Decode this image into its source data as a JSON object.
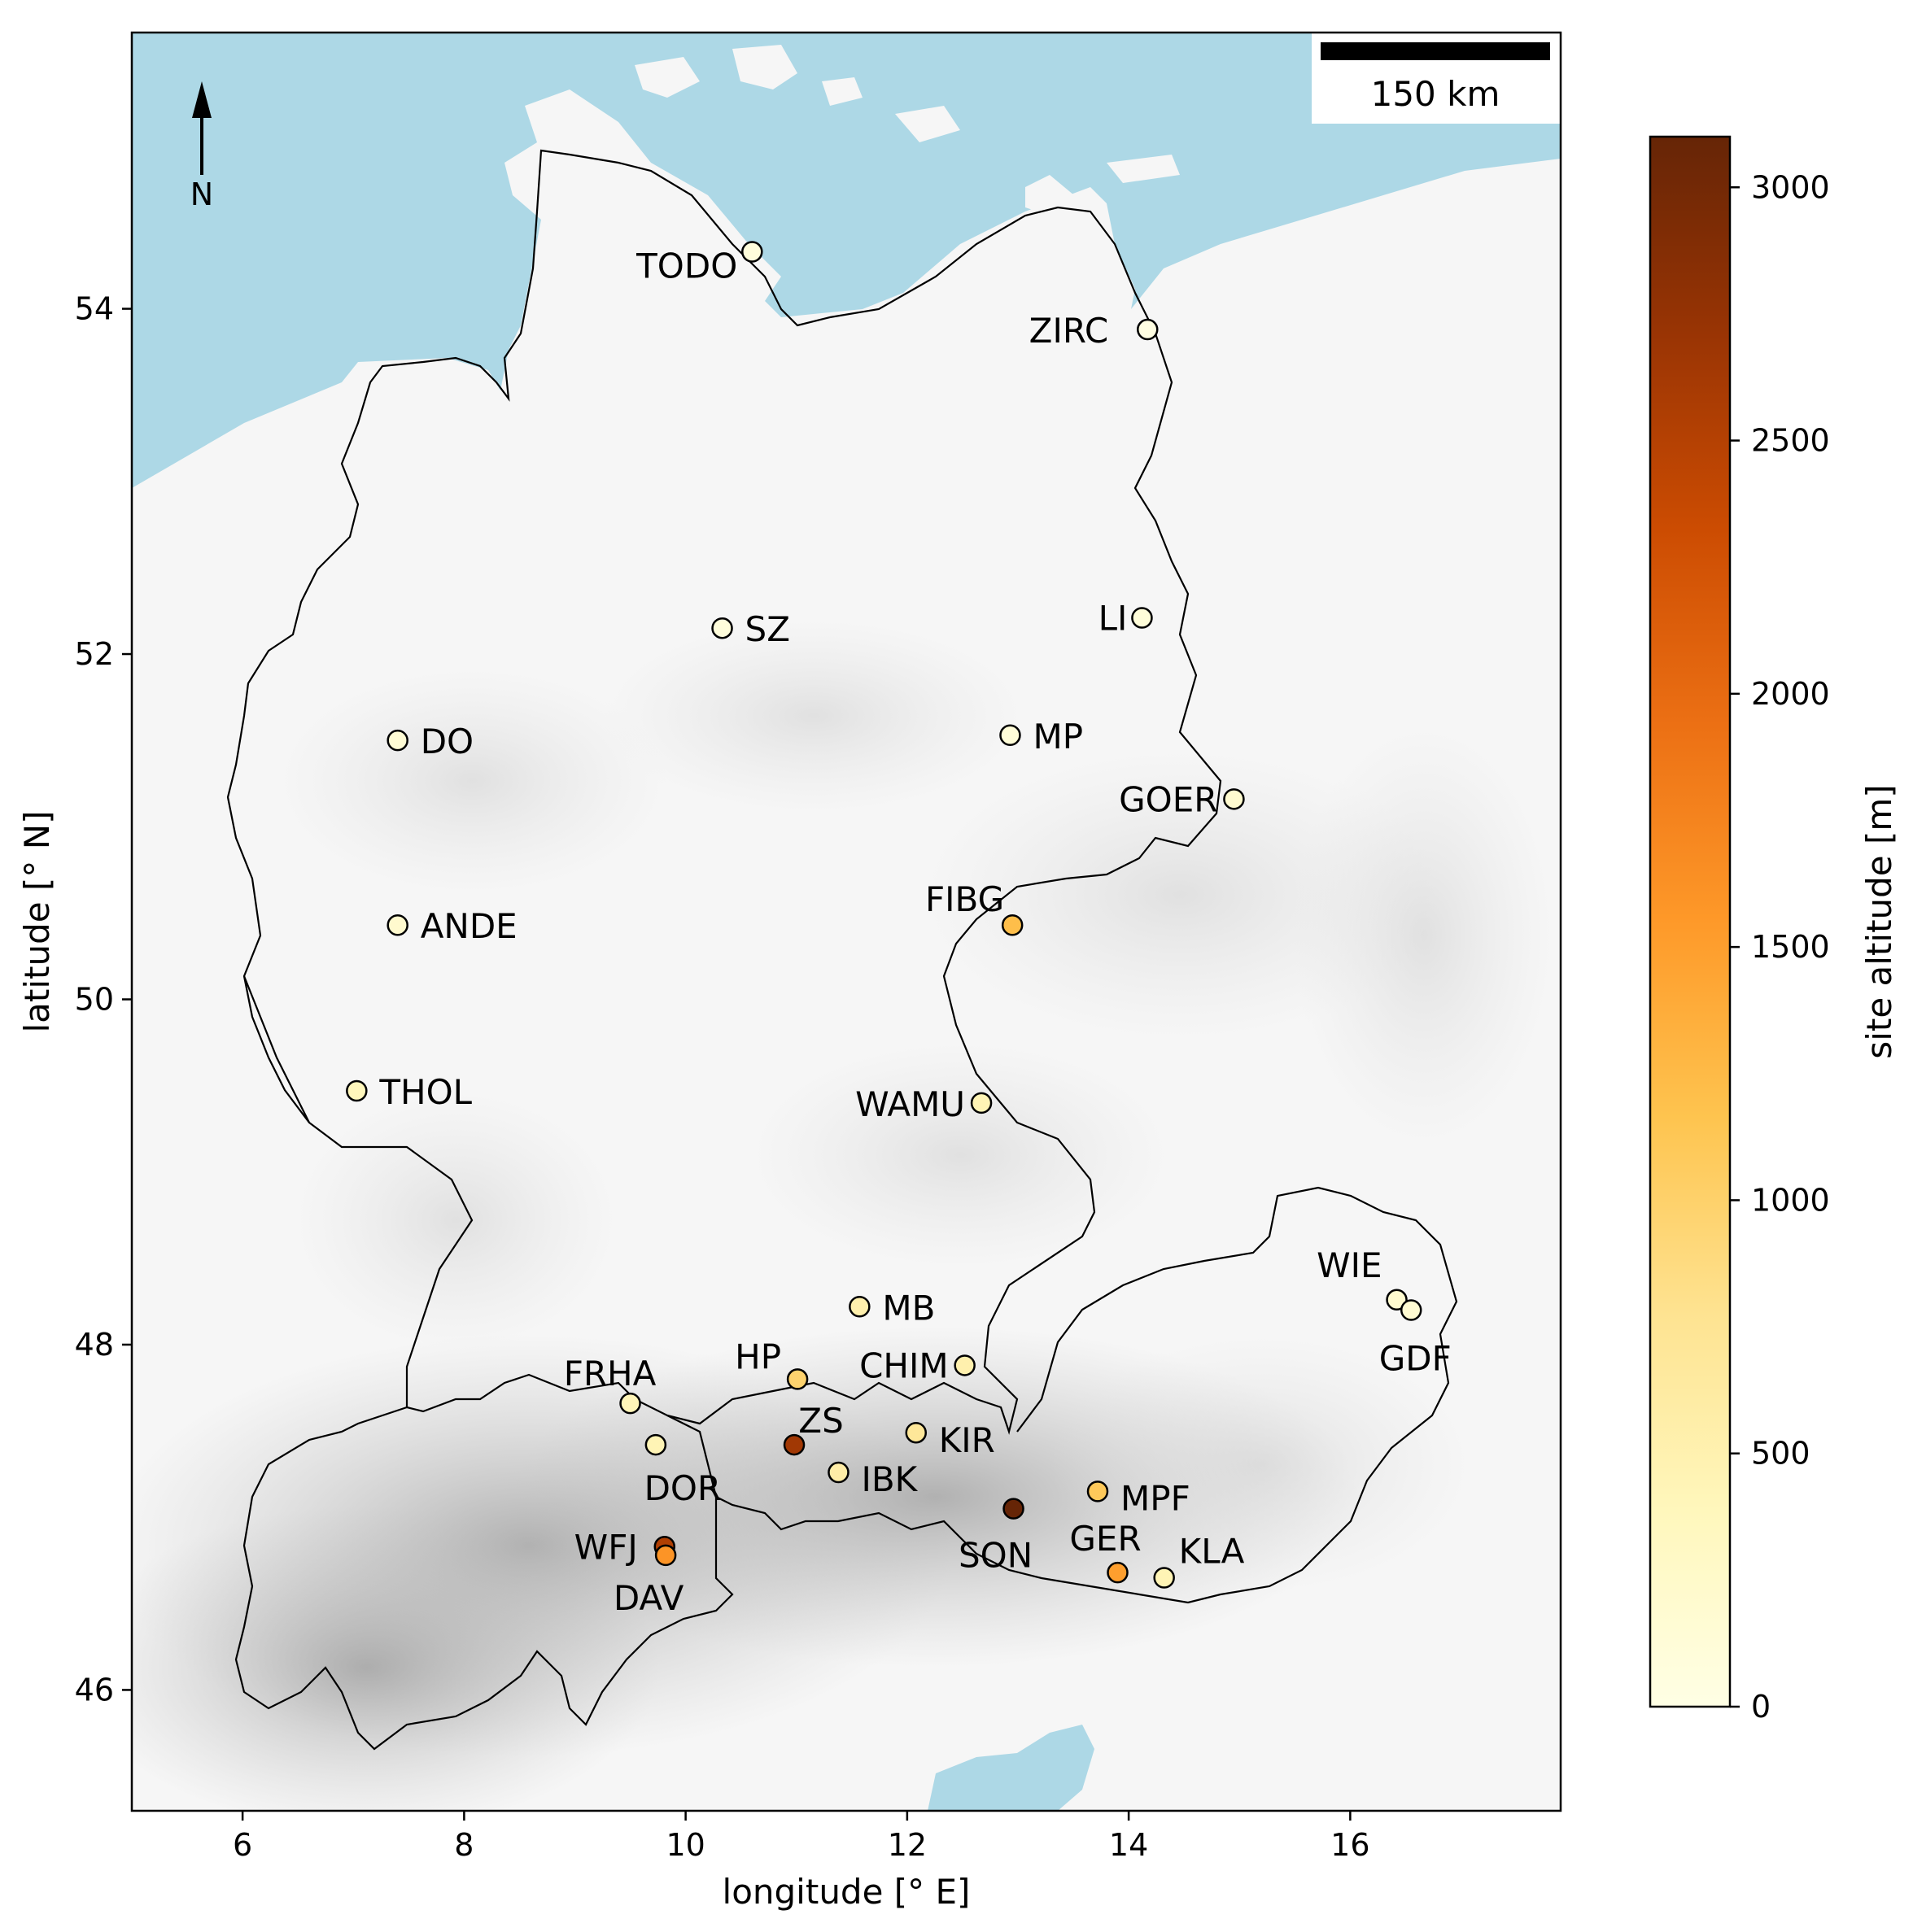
{
  "map": {
    "xlabel": "longitude [° E]",
    "ylabel": "latitude [° N]",
    "xlim": [
      5.0,
      17.9
    ],
    "ylim": [
      45.3,
      55.6
    ],
    "x_ticks": [
      6,
      8,
      10,
      12,
      14,
      16
    ],
    "x_tick_labels": [
      "6",
      "8",
      "10",
      "12",
      "14",
      "16"
    ],
    "y_ticks": [
      46,
      48,
      50,
      52,
      54
    ],
    "y_tick_labels": [
      "46",
      "48",
      "50",
      "52",
      "54"
    ],
    "north_arrow": "N",
    "scale_bar": "150 km",
    "sea_color": "#add8e6",
    "land_color": "#f6f6f6",
    "border_color": "#000000"
  },
  "colorbar": {
    "label": "site altitude [m]",
    "range": [
      0,
      3100
    ],
    "ticks": [
      0,
      500,
      1000,
      1500,
      2000,
      2500,
      3000
    ],
    "tick_labels": [
      "0",
      "500",
      "1000",
      "1500",
      "2000",
      "2500",
      "3000"
    ],
    "colormap": "YlOrBr"
  },
  "chart_data": {
    "type": "scatter",
    "xlabel": "longitude [° E]",
    "ylabel": "latitude [° N]",
    "color_variable": "site altitude [m]",
    "points": [
      {
        "name": "TODO",
        "lon": 10.6,
        "lat": 54.33,
        "alt": 90
      },
      {
        "name": "ZIRC",
        "lon": 14.17,
        "lat": 53.88,
        "alt": 30
      },
      {
        "name": "SZ",
        "lon": 10.33,
        "lat": 52.15,
        "alt": 90
      },
      {
        "name": "LI",
        "lon": 14.12,
        "lat": 52.21,
        "alt": 110
      },
      {
        "name": "DO",
        "lon": 7.4,
        "lat": 51.5,
        "alt": 150
      },
      {
        "name": "MP",
        "lon": 12.93,
        "lat": 51.53,
        "alt": 120
      },
      {
        "name": "GOER",
        "lon": 14.95,
        "lat": 51.16,
        "alt": 200
      },
      {
        "name": "FIBG",
        "lon": 12.95,
        "lat": 50.43,
        "alt": 1215
      },
      {
        "name": "ANDE",
        "lon": 7.4,
        "lat": 50.43,
        "alt": 220
      },
      {
        "name": "THOL",
        "lon": 7.03,
        "lat": 49.47,
        "alt": 390
      },
      {
        "name": "WAMU",
        "lon": 12.67,
        "lat": 49.4,
        "alt": 450
      },
      {
        "name": "WIE",
        "lon": 16.42,
        "lat": 48.26,
        "alt": 200
      },
      {
        "name": "GDF",
        "lon": 16.55,
        "lat": 48.2,
        "alt": 180
      },
      {
        "name": "MB",
        "lon": 11.57,
        "lat": 48.22,
        "alt": 520
      },
      {
        "name": "HP",
        "lon": 11.01,
        "lat": 47.8,
        "alt": 980
      },
      {
        "name": "CHIM",
        "lon": 12.52,
        "lat": 47.88,
        "alt": 520
      },
      {
        "name": "FRHA",
        "lon": 9.5,
        "lat": 47.66,
        "alt": 420
      },
      {
        "name": "ZS",
        "lon": 10.98,
        "lat": 47.42,
        "alt": 2650
      },
      {
        "name": "KIR",
        "lon": 12.08,
        "lat": 47.49,
        "alt": 700
      },
      {
        "name": "DOR",
        "lon": 9.73,
        "lat": 47.42,
        "alt": 450
      },
      {
        "name": "IBK",
        "lon": 11.38,
        "lat": 47.26,
        "alt": 580
      },
      {
        "name": "MPF",
        "lon": 13.72,
        "lat": 47.15,
        "alt": 1100
      },
      {
        "name": "SON",
        "lon": 12.96,
        "lat": 47.05,
        "alt": 3100
      },
      {
        "name": "WFJ",
        "lon": 9.81,
        "lat": 46.83,
        "alt": 2540
      },
      {
        "name": "DAV",
        "lon": 9.82,
        "lat": 46.78,
        "alt": 1600
      },
      {
        "name": "GER",
        "lon": 13.9,
        "lat": 46.68,
        "alt": 1500
      },
      {
        "name": "KLA",
        "lon": 14.32,
        "lat": 46.65,
        "alt": 450
      }
    ]
  }
}
